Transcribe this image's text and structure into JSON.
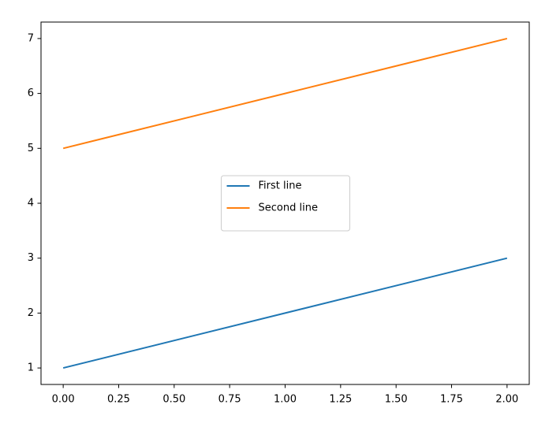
{
  "chart_data": {
    "type": "line",
    "x": [
      0,
      1,
      2
    ],
    "series": [
      {
        "name": "First line",
        "color": "#1f77b4",
        "values": [
          1,
          2,
          3
        ]
      },
      {
        "name": "Second line",
        "color": "#ff7f0e",
        "values": [
          5,
          6,
          7
        ]
      }
    ],
    "xlim": [
      -0.1,
      2.1
    ],
    "ylim": [
      0.7,
      7.3
    ],
    "xticks": [
      {
        "value": 0,
        "label": "0.00"
      },
      {
        "value": 0.25,
        "label": "0.25"
      },
      {
        "value": 0.5,
        "label": "0.50"
      },
      {
        "value": 0.75,
        "label": "0.75"
      },
      {
        "value": 1,
        "label": "1.00"
      },
      {
        "value": 1.25,
        "label": "1.25"
      },
      {
        "value": 1.5,
        "label": "1.50"
      },
      {
        "value": 1.75,
        "label": "1.75"
      },
      {
        "value": 2,
        "label": "2.00"
      }
    ],
    "yticks": [
      1,
      2,
      3,
      4,
      5,
      6,
      7
    ],
    "grid": false,
    "legend": "center"
  }
}
